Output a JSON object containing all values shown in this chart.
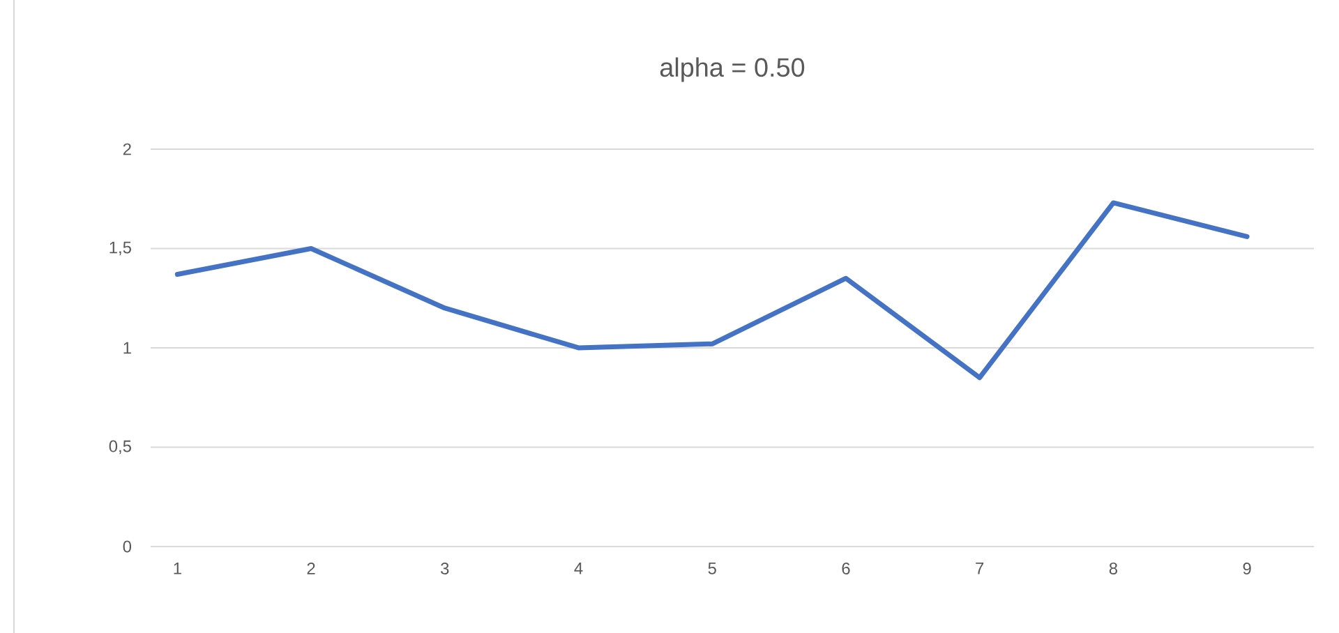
{
  "chart_data": {
    "type": "line",
    "title": "alpha = 0.50",
    "categories": [
      "1",
      "2",
      "3",
      "4",
      "5",
      "6",
      "7",
      "8",
      "9"
    ],
    "series": [
      {
        "color": "#4472c4",
        "values": [
          1.37,
          1.5,
          1.2,
          1.0,
          1.02,
          1.35,
          0.85,
          1.73,
          1.56
        ]
      }
    ],
    "ylim": [
      0,
      2
    ],
    "yticks": [
      0,
      {
        "value": 0.5,
        "label": "0,5"
      },
      1,
      {
        "value": 1.5,
        "label": "1,5"
      },
      2
    ],
    "grid": "y",
    "legend": false,
    "marker": "none",
    "line_style": "solid"
  }
}
